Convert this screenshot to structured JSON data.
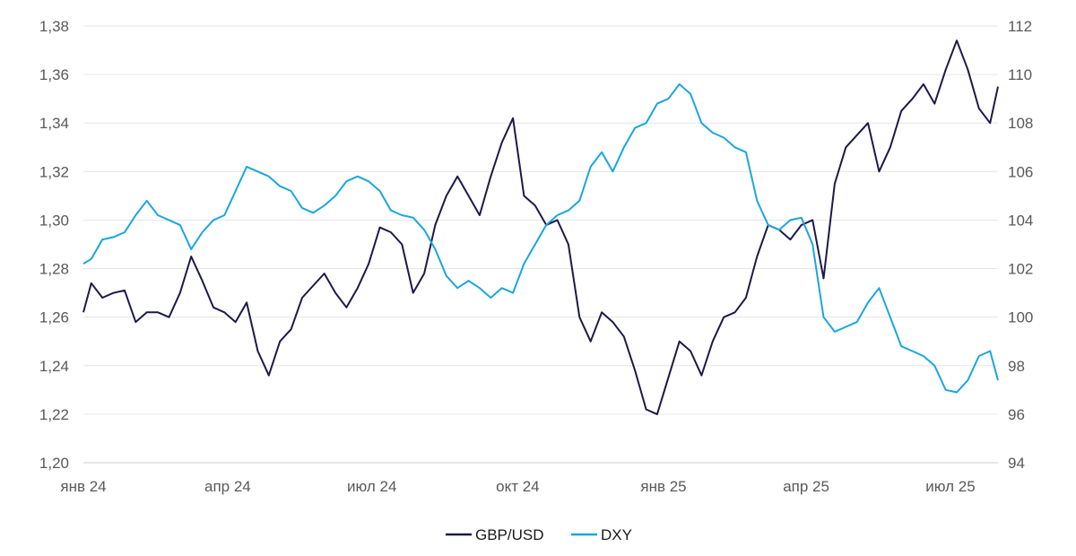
{
  "chart_data": {
    "type": "line",
    "title": "",
    "xlabel": "",
    "ylabel_left": "",
    "ylabel_right": "",
    "x_tick_labels": [
      "янв 24",
      "апр 24",
      "июл 24",
      "окт 24",
      "янв 25",
      "апр 25",
      "июл 25"
    ],
    "x_tick_dates": [
      "2024-01-01",
      "2024-04-01",
      "2024-07-01",
      "2024-10-01",
      "2025-01-01",
      "2025-04-01",
      "2025-07-01"
    ],
    "xlim": [
      "2024-01-01",
      "2025-07-31"
    ],
    "y_left": {
      "ylim": [
        1.2,
        1.38
      ],
      "ticks": [
        "1,20",
        "1,22",
        "1,24",
        "1,26",
        "1,28",
        "1,30",
        "1,32",
        "1,34",
        "1,36",
        "1,38"
      ]
    },
    "y_right": {
      "ylim": [
        94,
        112
      ],
      "ticks": [
        "94",
        "96",
        "98",
        "100",
        "102",
        "104",
        "106",
        "108",
        "110",
        "112"
      ]
    },
    "grid": "horizontal",
    "legend": "bottom-center",
    "series": [
      {
        "name": "GBP/USD",
        "axis": "left",
        "color": "#1b1a4a",
        "x": [
          "2024-01-01",
          "2024-01-06",
          "2024-01-13",
          "2024-01-20",
          "2024-01-27",
          "2024-02-03",
          "2024-02-10",
          "2024-02-17",
          "2024-02-24",
          "2024-03-02",
          "2024-03-09",
          "2024-03-16",
          "2024-03-23",
          "2024-03-30",
          "2024-04-06",
          "2024-04-13",
          "2024-04-20",
          "2024-04-27",
          "2024-05-04",
          "2024-05-11",
          "2024-05-18",
          "2024-05-25",
          "2024-06-01",
          "2024-06-08",
          "2024-06-15",
          "2024-06-22",
          "2024-06-29",
          "2024-07-06",
          "2024-07-13",
          "2024-07-20",
          "2024-07-27",
          "2024-08-03",
          "2024-08-10",
          "2024-08-17",
          "2024-08-24",
          "2024-08-31",
          "2024-09-07",
          "2024-09-14",
          "2024-09-21",
          "2024-09-28",
          "2024-10-05",
          "2024-10-12",
          "2024-10-19",
          "2024-10-26",
          "2024-11-02",
          "2024-11-09",
          "2024-11-16",
          "2024-11-23",
          "2024-11-30",
          "2024-12-07",
          "2024-12-14",
          "2024-12-21",
          "2024-12-28",
          "2025-01-04",
          "2025-01-11",
          "2025-01-18",
          "2025-01-25",
          "2025-02-01",
          "2025-02-08",
          "2025-02-15",
          "2025-02-22",
          "2025-03-01",
          "2025-03-08",
          "2025-03-15",
          "2025-03-22",
          "2025-03-29",
          "2025-04-05",
          "2025-04-12",
          "2025-04-19",
          "2025-04-26",
          "2025-05-03",
          "2025-05-10",
          "2025-05-17",
          "2025-05-24",
          "2025-05-31",
          "2025-06-07",
          "2025-06-14",
          "2025-06-21",
          "2025-06-28",
          "2025-07-05",
          "2025-07-12",
          "2025-07-19",
          "2025-07-26",
          "2025-07-31"
        ],
        "values": [
          1.262,
          1.274,
          1.268,
          1.27,
          1.271,
          1.258,
          1.262,
          1.262,
          1.26,
          1.27,
          1.285,
          1.275,
          1.264,
          1.262,
          1.258,
          1.266,
          1.246,
          1.236,
          1.25,
          1.255,
          1.268,
          1.273,
          1.278,
          1.27,
          1.264,
          1.272,
          1.282,
          1.297,
          1.295,
          1.29,
          1.27,
          1.278,
          1.298,
          1.31,
          1.318,
          1.31,
          1.302,
          1.318,
          1.332,
          1.342,
          1.31,
          1.306,
          1.298,
          1.3,
          1.29,
          1.26,
          1.25,
          1.262,
          1.258,
          1.252,
          1.238,
          1.222,
          1.22,
          1.235,
          1.25,
          1.246,
          1.236,
          1.25,
          1.26,
          1.262,
          1.268,
          1.285,
          1.298,
          1.296,
          1.292,
          1.298,
          1.3,
          1.276,
          1.315,
          1.33,
          1.335,
          1.34,
          1.32,
          1.33,
          1.345,
          1.35,
          1.356,
          1.348,
          1.362,
          1.374,
          1.362,
          1.346,
          1.34,
          1.355
        ]
      },
      {
        "name": "DXY",
        "axis": "right",
        "color": "#1aa6df",
        "x": [
          "2024-01-01",
          "2024-01-06",
          "2024-01-13",
          "2024-01-20",
          "2024-01-27",
          "2024-02-03",
          "2024-02-10",
          "2024-02-17",
          "2024-02-24",
          "2024-03-02",
          "2024-03-09",
          "2024-03-16",
          "2024-03-23",
          "2024-03-30",
          "2024-04-06",
          "2024-04-13",
          "2024-04-20",
          "2024-04-27",
          "2024-05-04",
          "2024-05-11",
          "2024-05-18",
          "2024-05-25",
          "2024-06-01",
          "2024-06-08",
          "2024-06-15",
          "2024-06-22",
          "2024-06-29",
          "2024-07-06",
          "2024-07-13",
          "2024-07-20",
          "2024-07-27",
          "2024-08-03",
          "2024-08-10",
          "2024-08-17",
          "2024-08-24",
          "2024-08-31",
          "2024-09-07",
          "2024-09-14",
          "2024-09-21",
          "2024-09-28",
          "2024-10-05",
          "2024-10-12",
          "2024-10-19",
          "2024-10-26",
          "2024-11-02",
          "2024-11-09",
          "2024-11-16",
          "2024-11-23",
          "2024-11-30",
          "2024-12-07",
          "2024-12-14",
          "2024-12-21",
          "2024-12-28",
          "2025-01-04",
          "2025-01-11",
          "2025-01-18",
          "2025-01-25",
          "2025-02-01",
          "2025-02-08",
          "2025-02-15",
          "2025-02-22",
          "2025-03-01",
          "2025-03-08",
          "2025-03-15",
          "2025-03-22",
          "2025-03-29",
          "2025-04-05",
          "2025-04-12",
          "2025-04-19",
          "2025-04-26",
          "2025-05-03",
          "2025-05-10",
          "2025-05-17",
          "2025-05-24",
          "2025-05-31",
          "2025-06-07",
          "2025-06-14",
          "2025-06-21",
          "2025-06-28",
          "2025-07-05",
          "2025-07-12",
          "2025-07-19",
          "2025-07-26",
          "2025-07-31"
        ],
        "values": [
          102.2,
          102.4,
          103.2,
          103.3,
          103.5,
          104.2,
          104.8,
          104.2,
          104.0,
          103.8,
          102.8,
          103.5,
          104.0,
          104.2,
          105.2,
          106.2,
          106.0,
          105.8,
          105.4,
          105.2,
          104.5,
          104.3,
          104.6,
          105.0,
          105.6,
          105.8,
          105.6,
          105.2,
          104.4,
          104.2,
          104.1,
          103.6,
          102.8,
          101.7,
          101.2,
          101.5,
          101.2,
          100.8,
          101.2,
          101.0,
          102.2,
          103.0,
          103.8,
          104.2,
          104.4,
          104.8,
          106.2,
          106.8,
          106.0,
          107.0,
          107.8,
          108.0,
          108.8,
          109.0,
          109.6,
          109.2,
          108.0,
          107.6,
          107.4,
          107.0,
          106.8,
          104.8,
          103.8,
          103.6,
          104.0,
          104.1,
          103.0,
          100.0,
          99.4,
          99.6,
          99.8,
          100.6,
          101.2,
          100.0,
          98.8,
          98.6,
          98.4,
          98.0,
          97.0,
          96.9,
          97.4,
          98.4,
          98.6,
          97.4
        ]
      }
    ]
  }
}
